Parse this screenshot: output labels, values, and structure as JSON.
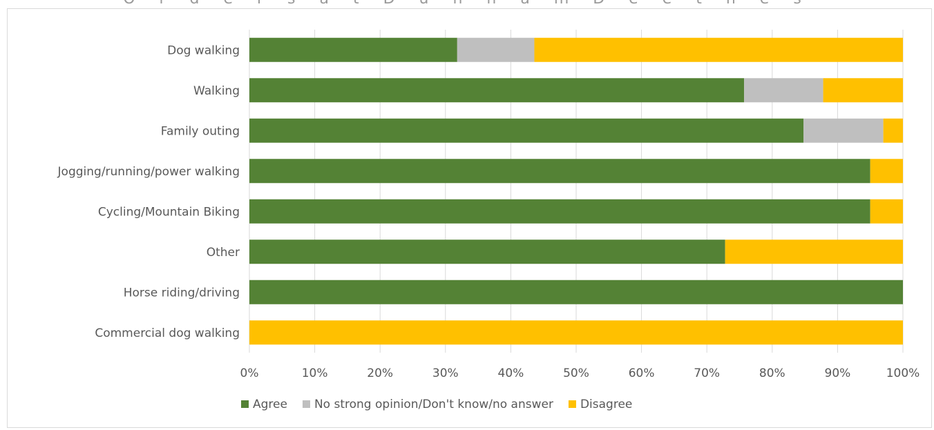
{
  "header": {
    "cropped_title": "O r d e r s   a t   D u n n a m   D e e t n e s"
  },
  "chart_data": {
    "type": "bar",
    "orientation": "horizontal",
    "stacked": true,
    "percent_stacked": true,
    "title": "",
    "xlabel": "",
    "ylabel": "",
    "xlim": [
      0,
      100
    ],
    "x_ticks": [
      "0%",
      "10%",
      "20%",
      "30%",
      "40%",
      "50%",
      "60%",
      "70%",
      "80%",
      "90%",
      "100%"
    ],
    "categories": [
      "Dog walking",
      "Walking",
      "Family outing",
      "Jogging/running/power walking",
      "Cycling/Mountain Biking",
      "Other",
      "Horse riding/driving",
      "Commercial dog walking"
    ],
    "series": [
      {
        "name": "Agree",
        "color": "#548235",
        "values": [
          31.8,
          75.7,
          84.8,
          95.0,
          95.0,
          72.8,
          100.0,
          0.0
        ]
      },
      {
        "name": "No strong opinion/Don't know/no answer",
        "color": "#bfbfbf",
        "values": [
          11.8,
          12.1,
          12.2,
          0.0,
          0.0,
          0.0,
          0.0,
          0.0
        ]
      },
      {
        "name": "Disagree",
        "color": "#ffc000",
        "values": [
          56.4,
          12.2,
          3.0,
          5.0,
          5.0,
          27.2,
          0.0,
          100.0
        ]
      }
    ],
    "grid": true,
    "legend_position": "bottom"
  }
}
